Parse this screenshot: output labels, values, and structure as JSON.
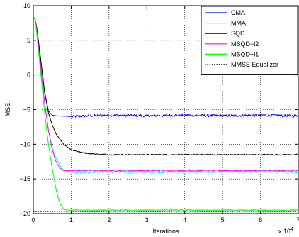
{
  "chart_data": {
    "type": "line",
    "xlabel": "Iterations",
    "ylabel": "MSE",
    "x_multiplier_label": "x 10",
    "x_multiplier_exp": "4",
    "xlim": [
      0,
      7
    ],
    "ylim": [
      -20,
      10
    ],
    "xticks": [
      0,
      1,
      2,
      3,
      4,
      5,
      6,
      7
    ],
    "yticks": [
      10,
      5,
      0,
      -5,
      -10,
      -15,
      -20
    ],
    "grid": true,
    "legend_position": "top-right",
    "series": [
      {
        "name": "CMA",
        "color": "#0000ff",
        "style": "solid",
        "x": [
          0,
          0.05,
          0.1,
          0.2,
          0.3,
          0.4,
          0.5,
          0.6,
          1.0,
          2.0,
          3.0,
          4.0,
          5.0,
          6.0,
          7.0
        ],
        "y": [
          8.3,
          8.0,
          6.5,
          2.0,
          -2.5,
          -5.2,
          -5.8,
          -5.9,
          -6.0,
          -5.8,
          -5.9,
          -5.8,
          -5.9,
          -5.8,
          -5.9
        ]
      },
      {
        "name": "MMA",
        "color": "#00ffff",
        "style": "solid",
        "x": [
          0,
          0.05,
          0.1,
          0.2,
          0.3,
          0.4,
          0.5,
          0.6,
          0.7,
          0.8,
          1.0,
          2.0,
          3.0,
          4.0,
          5.0,
          6.0,
          7.0
        ],
        "y": [
          8.3,
          8.0,
          6.0,
          1.0,
          -4.0,
          -8.0,
          -10.5,
          -12.0,
          -13.0,
          -13.8,
          -14.0,
          -14.0,
          -14.0,
          -14.0,
          -14.0,
          -13.9,
          -14.0
        ]
      },
      {
        "name": "SQD",
        "color": "#000000",
        "style": "solid",
        "x": [
          0,
          0.05,
          0.1,
          0.2,
          0.3,
          0.4,
          0.5,
          0.6,
          0.8,
          1.0,
          1.3,
          1.6,
          2.0,
          3.0,
          4.0,
          5.0,
          6.0,
          7.0
        ],
        "y": [
          8.3,
          8.0,
          6.5,
          2.0,
          -2.5,
          -5.5,
          -7.2,
          -8.5,
          -10.0,
          -10.8,
          -11.2,
          -11.4,
          -11.5,
          -11.5,
          -11.5,
          -11.5,
          -11.5,
          -11.5
        ]
      },
      {
        "name": "MSQD−l2",
        "color": "#ff00ff",
        "style": "solid",
        "x": [
          0,
          0.05,
          0.1,
          0.2,
          0.3,
          0.4,
          0.5,
          0.6,
          0.7,
          0.8,
          1.0,
          2.0,
          3.0,
          4.0,
          5.0,
          6.0,
          7.0
        ],
        "y": [
          8.3,
          8.0,
          6.0,
          1.0,
          -4.0,
          -8.0,
          -10.8,
          -12.5,
          -13.4,
          -13.8,
          -13.8,
          -13.8,
          -13.8,
          -13.8,
          -13.8,
          -13.8,
          -13.8
        ]
      },
      {
        "name": "MSQD−l1",
        "color": "#00ff00",
        "style": "solid",
        "x": [
          0,
          0.05,
          0.1,
          0.2,
          0.3,
          0.4,
          0.5,
          0.6,
          0.7,
          0.8,
          0.9,
          1.0,
          2.0,
          3.0,
          4.0,
          5.0,
          6.0,
          7.0
        ],
        "y": [
          8.3,
          8.0,
          5.5,
          0.0,
          -5.5,
          -10.0,
          -13.5,
          -16.5,
          -18.5,
          -19.4,
          -19.5,
          -19.5,
          -19.5,
          -19.5,
          -19.5,
          -19.5,
          -19.5,
          -19.5
        ]
      },
      {
        "name": "MMSE Equalizer",
        "color": "#000000",
        "style": "dotted",
        "x": [
          0,
          7
        ],
        "y": [
          -19.7,
          -19.7
        ]
      }
    ]
  }
}
